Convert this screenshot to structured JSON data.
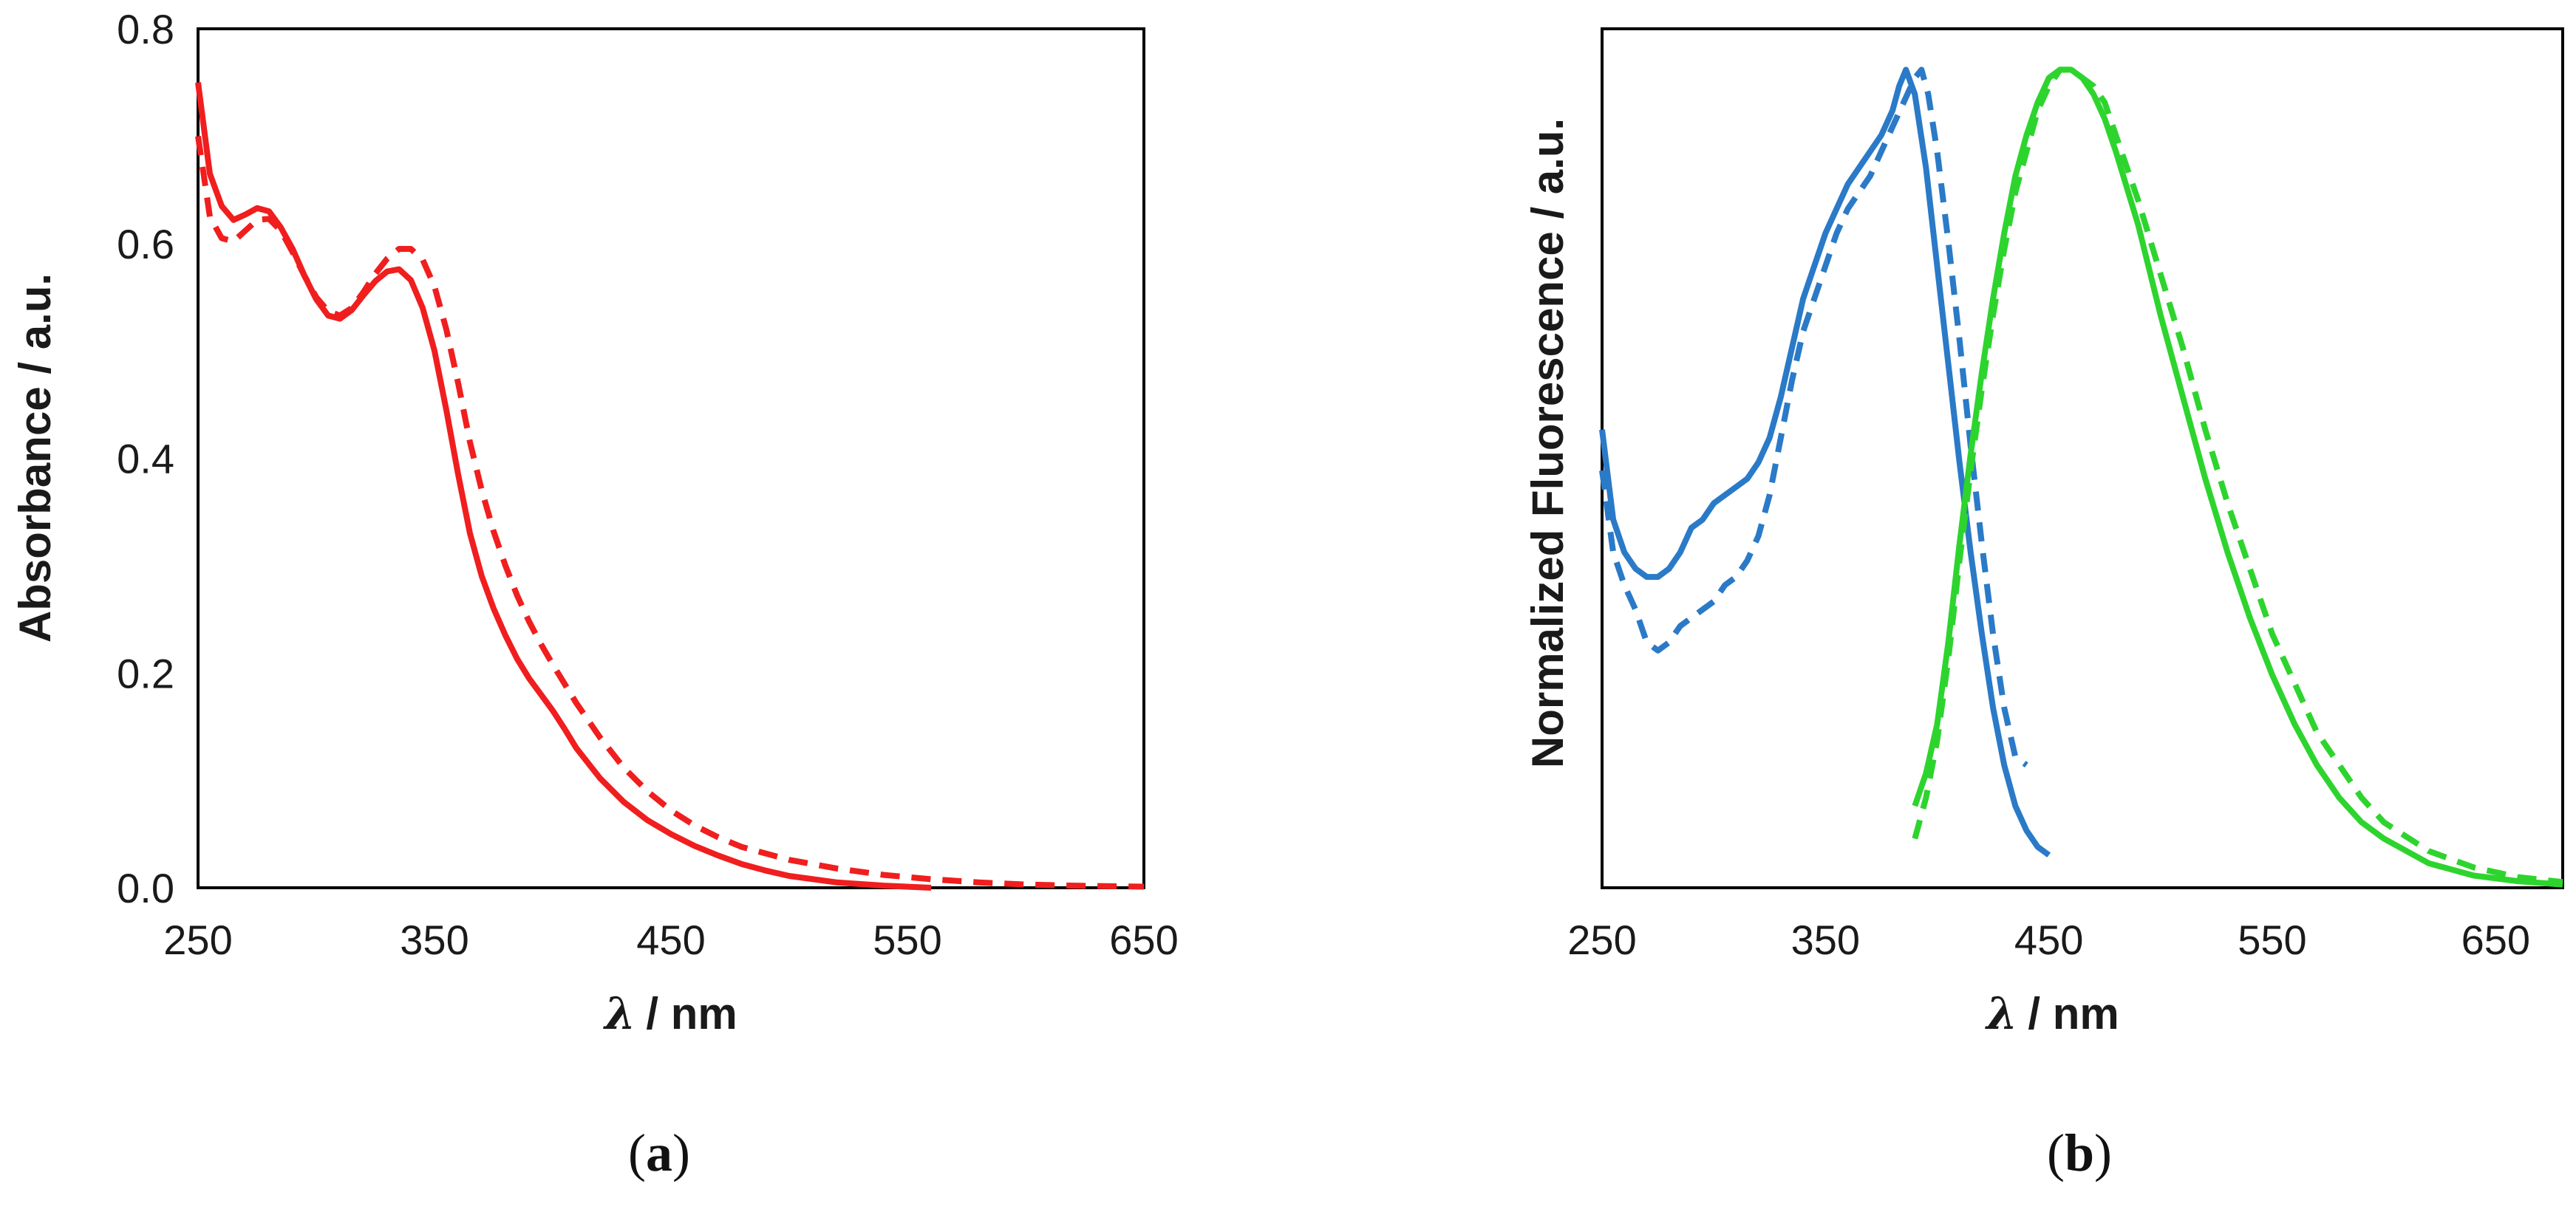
{
  "panel_labels": {
    "a_open": "(",
    "a_letter": "a",
    "a_close": ")",
    "b_open": "(",
    "b_letter": "b",
    "b_close": ")"
  },
  "chart_data": [
    {
      "id": "a",
      "type": "line",
      "title": "",
      "xlabel_symbol": "λ",
      "xlabel_unit": "/ nm",
      "ylabel": "Absorbance / a.u.",
      "xlim": [
        250,
        650
      ],
      "ylim": [
        0,
        0.8
      ],
      "x_ticks": [
        "250",
        "350",
        "450",
        "550",
        "650"
      ],
      "y_ticks": [
        "0.0",
        "0.2",
        "0.4",
        "0.6",
        "0.8"
      ],
      "series": [
        {
          "name": "absorbance-solid",
          "style": "solid",
          "color": "#f01e1e",
          "x": [
            250,
            255,
            260,
            265,
            270,
            275,
            280,
            285,
            290,
            295,
            300,
            305,
            310,
            315,
            320,
            325,
            330,
            335,
            340,
            345,
            350,
            355,
            360,
            365,
            370,
            375,
            380,
            385,
            390,
            395,
            400,
            405,
            410,
            420,
            430,
            440,
            450,
            460,
            470,
            480,
            490,
            500,
            520,
            540,
            560
          ],
          "y": [
            0.75,
            0.665,
            0.635,
            0.622,
            0.627,
            0.633,
            0.63,
            0.615,
            0.595,
            0.57,
            0.548,
            0.533,
            0.53,
            0.538,
            0.552,
            0.565,
            0.574,
            0.576,
            0.566,
            0.54,
            0.5,
            0.445,
            0.385,
            0.33,
            0.29,
            0.26,
            0.235,
            0.213,
            0.195,
            0.18,
            0.165,
            0.148,
            0.13,
            0.102,
            0.08,
            0.063,
            0.05,
            0.039,
            0.03,
            0.022,
            0.016,
            0.011,
            0.005,
            0.002,
            0.0
          ]
        },
        {
          "name": "absorbance-dashed",
          "style": "dashed",
          "color": "#f01e1e",
          "x": [
            250,
            255,
            260,
            265,
            270,
            275,
            280,
            285,
            290,
            295,
            300,
            305,
            310,
            315,
            320,
            325,
            330,
            335,
            340,
            345,
            350,
            355,
            360,
            365,
            370,
            375,
            380,
            385,
            390,
            395,
            400,
            410,
            420,
            430,
            440,
            450,
            460,
            470,
            480,
            500,
            520,
            540,
            560,
            580,
            600,
            620,
            650
          ],
          "y": [
            0.7,
            0.625,
            0.605,
            0.602,
            0.612,
            0.622,
            0.623,
            0.612,
            0.592,
            0.57,
            0.55,
            0.537,
            0.533,
            0.54,
            0.555,
            0.572,
            0.586,
            0.595,
            0.595,
            0.585,
            0.56,
            0.52,
            0.47,
            0.415,
            0.37,
            0.332,
            0.3,
            0.272,
            0.248,
            0.227,
            0.208,
            0.172,
            0.14,
            0.112,
            0.09,
            0.072,
            0.058,
            0.047,
            0.038,
            0.026,
            0.018,
            0.012,
            0.008,
            0.005,
            0.003,
            0.002,
            0.001
          ]
        }
      ]
    },
    {
      "id": "b",
      "type": "line",
      "title": "",
      "xlabel_symbol": "λ",
      "xlabel_unit": "/ nm",
      "ylabel": "Normalized Fluorescence / a.u.",
      "xlim": [
        250,
        680
      ],
      "ylim": [
        0,
        1.05
      ],
      "x_ticks": [
        "250",
        "350",
        "450",
        "550",
        "650"
      ],
      "x_tick_values": [
        250,
        350,
        450,
        550,
        650
      ],
      "y_ticks": [],
      "series": [
        {
          "name": "excitation-solid",
          "style": "solid",
          "color": "#2a7ac8",
          "x": [
            250,
            255,
            260,
            265,
            270,
            275,
            280,
            285,
            290,
            295,
            300,
            305,
            310,
            315,
            320,
            325,
            330,
            335,
            340,
            345,
            350,
            355,
            360,
            365,
            370,
            375,
            380,
            383,
            386,
            390,
            395,
            400,
            405,
            410,
            415,
            420,
            425,
            430,
            435,
            440,
            445,
            450
          ],
          "y": [
            0.56,
            0.45,
            0.41,
            0.39,
            0.38,
            0.38,
            0.39,
            0.41,
            0.44,
            0.45,
            0.47,
            0.48,
            0.49,
            0.5,
            0.52,
            0.55,
            0.6,
            0.66,
            0.72,
            0.76,
            0.8,
            0.83,
            0.86,
            0.88,
            0.9,
            0.92,
            0.95,
            0.98,
            1.0,
            0.97,
            0.88,
            0.76,
            0.64,
            0.52,
            0.41,
            0.31,
            0.22,
            0.15,
            0.1,
            0.07,
            0.05,
            0.04
          ]
        },
        {
          "name": "excitation-dashed",
          "style": "dashed",
          "color": "#2a7ac8",
          "x": [
            250,
            255,
            260,
            265,
            270,
            275,
            280,
            285,
            290,
            295,
            300,
            305,
            310,
            315,
            320,
            325,
            330,
            335,
            340,
            345,
            350,
            355,
            360,
            365,
            370,
            375,
            380,
            385,
            390,
            393,
            396,
            400,
            405,
            410,
            415,
            420,
            425,
            430,
            435,
            440
          ],
          "y": [
            0.51,
            0.41,
            0.37,
            0.34,
            0.3,
            0.29,
            0.3,
            0.32,
            0.33,
            0.34,
            0.35,
            0.37,
            0.38,
            0.4,
            0.43,
            0.48,
            0.55,
            0.62,
            0.68,
            0.72,
            0.76,
            0.8,
            0.83,
            0.85,
            0.87,
            0.9,
            0.93,
            0.96,
            0.99,
            1.0,
            0.97,
            0.9,
            0.79,
            0.67,
            0.54,
            0.42,
            0.31,
            0.22,
            0.16,
            0.15
          ]
        },
        {
          "name": "emission-solid",
          "style": "solid",
          "color": "#2ed42e",
          "x": [
            390,
            395,
            400,
            405,
            410,
            415,
            420,
            425,
            430,
            435,
            440,
            445,
            450,
            455,
            460,
            465,
            470,
            475,
            480,
            490,
            500,
            510,
            520,
            530,
            540,
            550,
            560,
            570,
            580,
            590,
            600,
            620,
            640,
            660,
            680
          ],
          "y": [
            0.1,
            0.14,
            0.2,
            0.3,
            0.42,
            0.53,
            0.63,
            0.72,
            0.8,
            0.87,
            0.92,
            0.96,
            0.99,
            1.0,
            1.0,
            0.99,
            0.97,
            0.94,
            0.9,
            0.81,
            0.7,
            0.6,
            0.5,
            0.41,
            0.33,
            0.26,
            0.2,
            0.15,
            0.11,
            0.08,
            0.06,
            0.03,
            0.015,
            0.008,
            0.004
          ]
        },
        {
          "name": "emission-dashed",
          "style": "dashed",
          "color": "#2ed42e",
          "x": [
            390,
            395,
            400,
            405,
            410,
            415,
            420,
            425,
            430,
            435,
            440,
            445,
            450,
            455,
            460,
            465,
            470,
            475,
            480,
            490,
            500,
            510,
            520,
            530,
            540,
            550,
            560,
            570,
            580,
            590,
            600,
            620,
            640,
            660,
            680
          ],
          "y": [
            0.06,
            0.11,
            0.18,
            0.28,
            0.4,
            0.51,
            0.61,
            0.7,
            0.78,
            0.85,
            0.9,
            0.95,
            0.98,
            1.0,
            1.0,
            0.99,
            0.98,
            0.96,
            0.92,
            0.84,
            0.75,
            0.66,
            0.56,
            0.47,
            0.39,
            0.31,
            0.25,
            0.19,
            0.15,
            0.11,
            0.08,
            0.045,
            0.025,
            0.013,
            0.007
          ]
        }
      ]
    }
  ]
}
